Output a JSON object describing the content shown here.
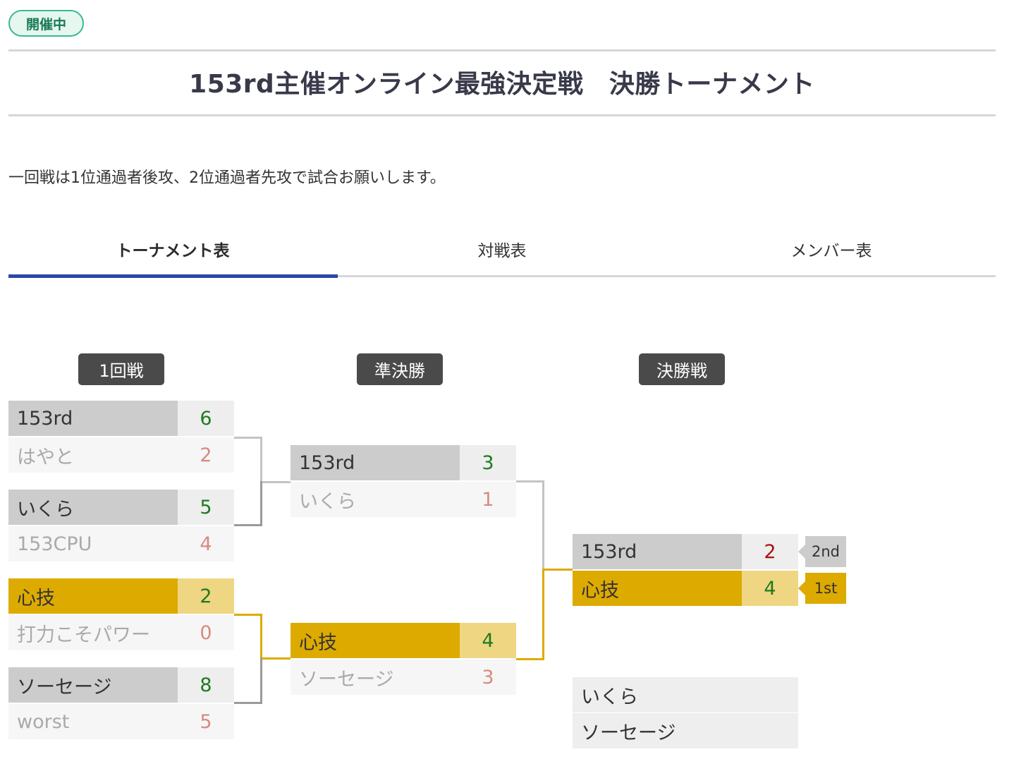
{
  "status": "開催中",
  "title": "153rd主催オンライン最強決定戦　決勝トーナメント",
  "notice": "一回戦は1位通過者後攻、2位通過者先攻で試合お願いします。",
  "tabs": [
    "トーナメント表",
    "対戦表",
    "メンバー表"
  ],
  "active_tab": "トーナメント表",
  "rounds": [
    "1回戦",
    "準決勝",
    "決勝戦"
  ],
  "round1": [
    {
      "top": {
        "name": "153rd",
        "score": "6"
      },
      "bottom": {
        "name": "はやと",
        "score": "2"
      }
    },
    {
      "top": {
        "name": "いくら",
        "score": "5"
      },
      "bottom": {
        "name": "153CPU",
        "score": "4"
      }
    },
    {
      "top": {
        "name": "心技",
        "score": "2"
      },
      "bottom": {
        "name": "打力こそパワー",
        "score": "0"
      }
    },
    {
      "top": {
        "name": "ソーセージ",
        "score": "8"
      },
      "bottom": {
        "name": "worst",
        "score": "5"
      }
    }
  ],
  "semifinal": [
    {
      "top": {
        "name": "153rd",
        "score": "3"
      },
      "bottom": {
        "name": "いくら",
        "score": "1"
      }
    },
    {
      "top": {
        "name": "心技",
        "score": "4"
      },
      "bottom": {
        "name": "ソーセージ",
        "score": "3"
      }
    }
  ],
  "final": {
    "top": {
      "name": "153rd",
      "score": "2",
      "place": "2nd"
    },
    "bottom": {
      "name": "心技",
      "score": "4",
      "place": "1st"
    }
  },
  "third_place": {
    "top": {
      "name": "いくら",
      "score": ""
    },
    "bottom": {
      "name": "ソーセージ",
      "score": ""
    }
  },
  "colors": {
    "accent_tab": "#2a47a8",
    "champion": "#ddaa00",
    "win_score": "#1f7a1f",
    "lose_score": "#d88a80",
    "status_border": "#3cb88c"
  }
}
